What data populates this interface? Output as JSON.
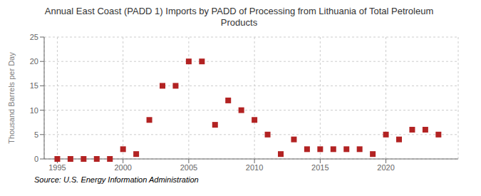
{
  "chart_data": {
    "type": "scatter",
    "title": "Annual East Coast (PADD 1) Imports by PADD of Processing from Lithuania of Total Petroleum\nProducts",
    "ylabel": "Thousand Barrels per Day",
    "annotations": [
      "Source: U.S. Energy Information Administration"
    ],
    "x": [
      1995,
      1996,
      1997,
      1998,
      1999,
      2000,
      2001,
      2002,
      2003,
      2004,
      2005,
      2006,
      2007,
      2008,
      2009,
      2010,
      2011,
      2012,
      2013,
      2014,
      2015,
      2016,
      2017,
      2018,
      2019,
      2020,
      2021,
      2022,
      2023,
      2024
    ],
    "values": [
      0.0,
      0.0,
      0.0,
      0.0,
      0.0,
      2.0,
      1.0,
      8.0,
      15.0,
      15.0,
      20.0,
      20.0,
      7.0,
      12.0,
      10.0,
      8.0,
      5.0,
      1.0,
      4.0,
      2.0,
      2.0,
      2.0,
      2.0,
      2.0,
      1.0,
      5.0,
      4.0,
      6.0,
      6.0,
      5.0
    ],
    "color": "#b22222",
    "marker": "square",
    "xlim": [
      1994.0,
      2025.5
    ],
    "ylim": [
      0,
      25
    ],
    "xticks": [
      1995,
      2000,
      2005,
      2010,
      2015,
      2020
    ],
    "yticks": [
      0,
      5,
      10,
      15,
      20,
      25
    ],
    "grid": true
  }
}
